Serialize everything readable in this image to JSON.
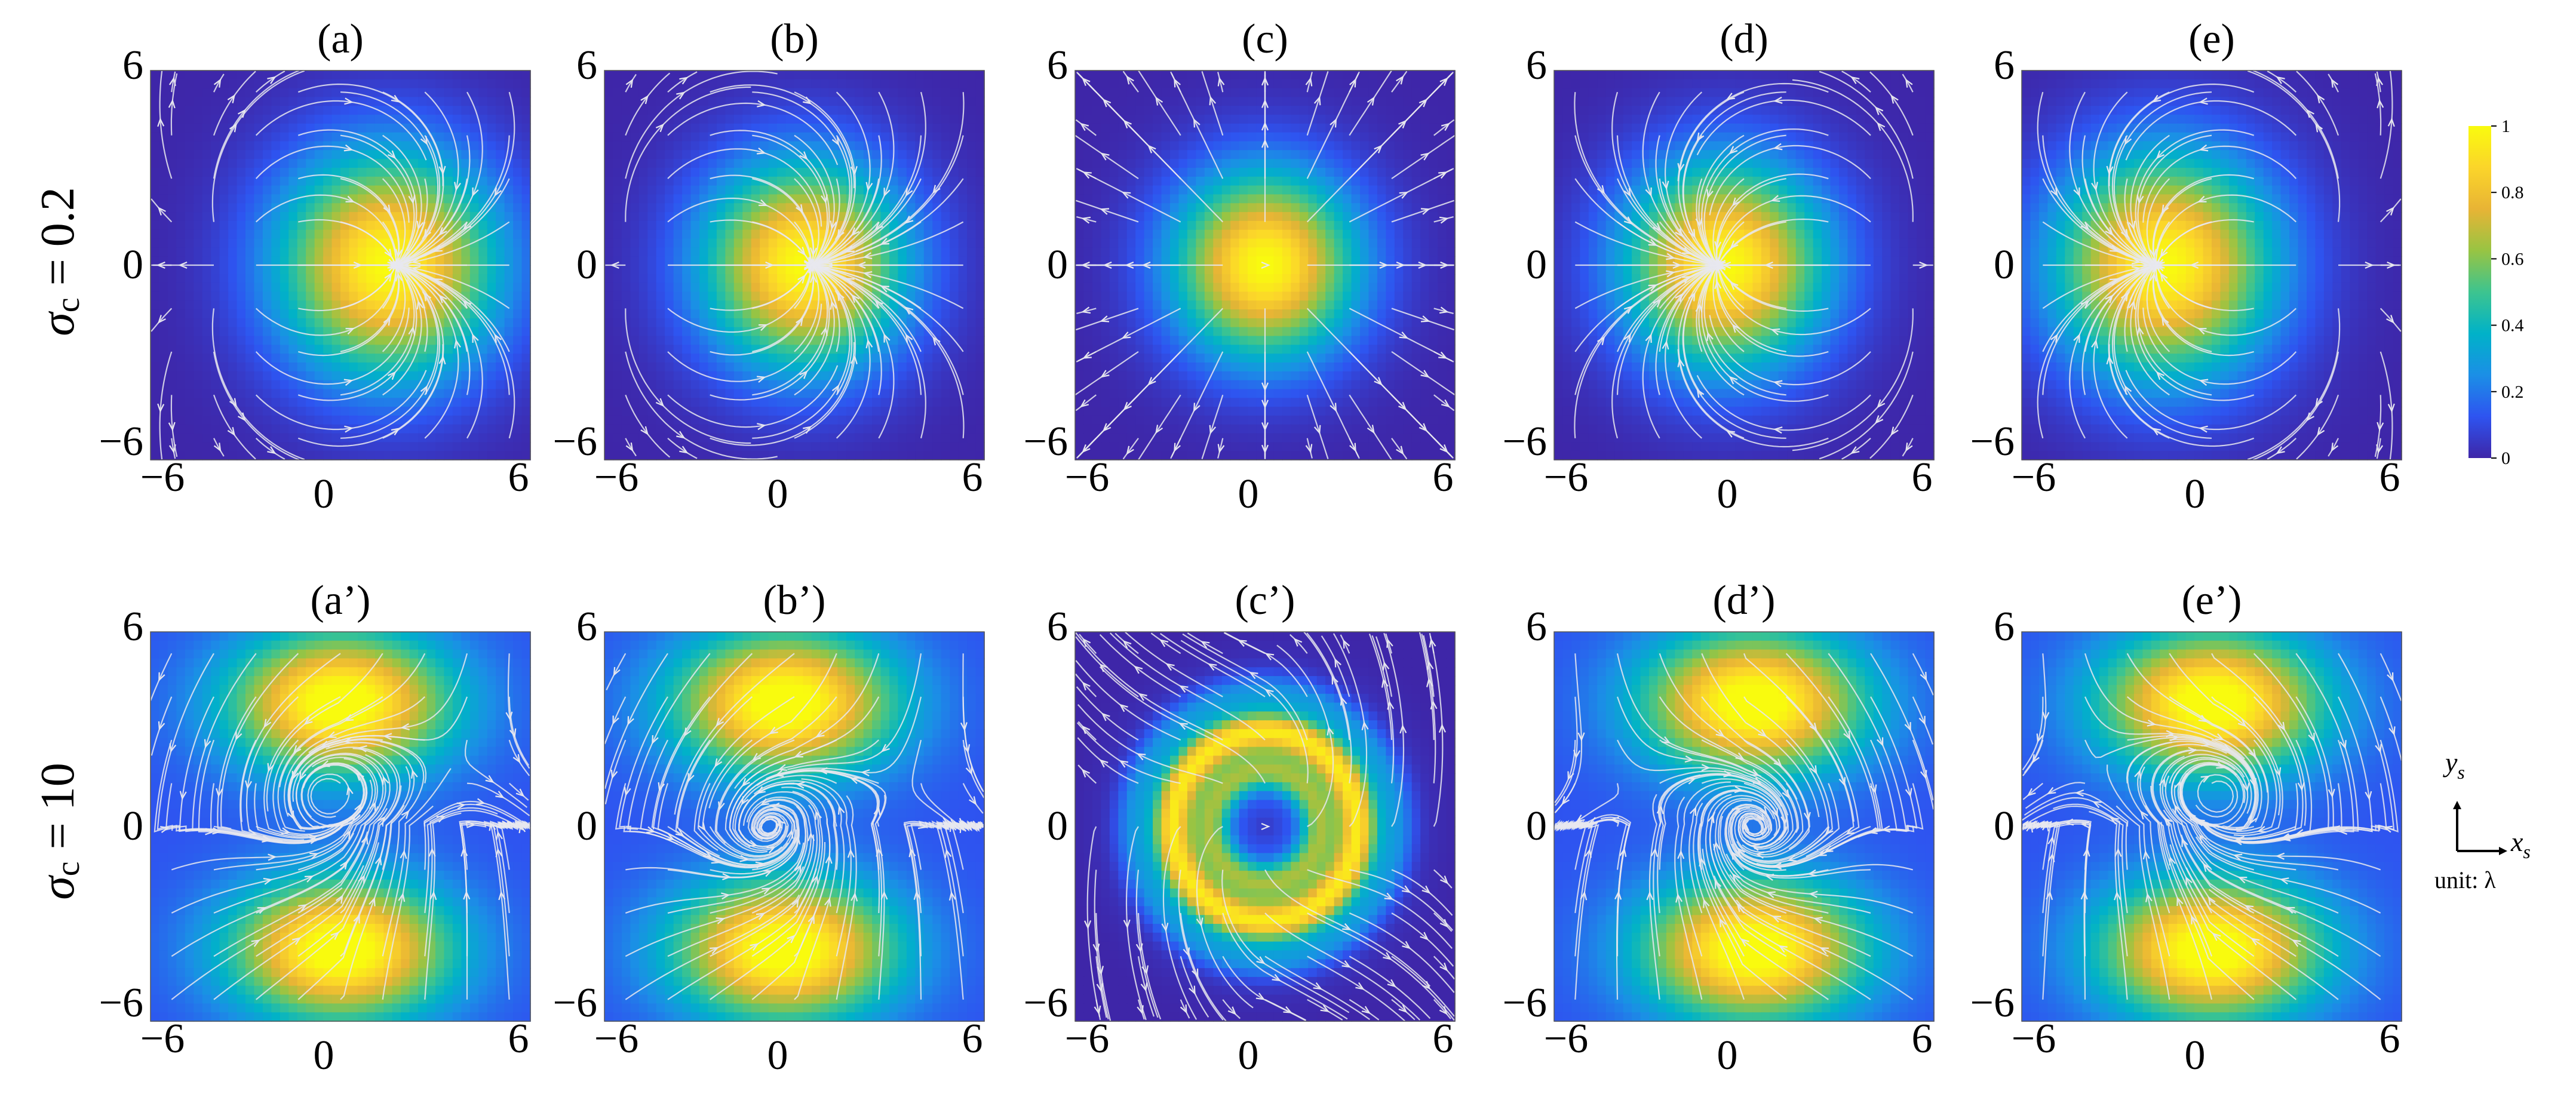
{
  "chart_data": {
    "type": "heatmap",
    "description_units": "intensity (normalized 0-1) with streamlines of transverse spin field",
    "rows": [
      {
        "label": "σc = 0.2",
        "label_symbol": "σ",
        "label_sub": "c",
        "label_value": " = 0.2",
        "sigma_c": 0.2
      },
      {
        "label": "σc = 10",
        "label_symbol": "σ",
        "label_sub": "c",
        "label_value": " = 10",
        "sigma_c": 10
      }
    ],
    "panels": [
      {
        "label": "(a)",
        "row": 0,
        "col": 0,
        "pattern": "gauss",
        "center": [
          1.5,
          0
        ],
        "sigma": 2.4,
        "source": [
          -3.5,
          0
        ],
        "vortex_sign": 0
      },
      {
        "label": "(b)",
        "row": 0,
        "col": 1,
        "pattern": "gauss",
        "center": [
          0.3,
          0
        ],
        "sigma": 2.2,
        "source": [
          -5.0,
          0
        ],
        "vortex_sign": 0
      },
      {
        "label": "(c)",
        "row": 0,
        "col": 2,
        "pattern": "gauss",
        "center": [
          0,
          0
        ],
        "sigma": 2.0,
        "source": [
          0,
          0
        ],
        "vortex_sign": 0
      },
      {
        "label": "(d)",
        "row": 0,
        "col": 3,
        "pattern": "gauss",
        "center": [
          -0.6,
          0
        ],
        "sigma": 2.2,
        "source": [
          5.0,
          0
        ],
        "vortex_sign": 0
      },
      {
        "label": "(e)",
        "row": 0,
        "col": 4,
        "pattern": "gauss",
        "center": [
          -1.5,
          0
        ],
        "sigma": 2.4,
        "source": [
          3.5,
          0
        ],
        "vortex_sign": 0
      },
      {
        "label": "(a’)",
        "row": 1,
        "col": 0,
        "pattern": "dipole",
        "center": [
          0,
          0
        ],
        "lobe_y": 3.8,
        "vortex": [
          -0.5,
          1.0
        ],
        "vortex_sign": 1
      },
      {
        "label": "(b’)",
        "row": 1,
        "col": 1,
        "pattern": "dipole",
        "center": [
          -0.3,
          0
        ],
        "lobe_y": 3.8,
        "vortex": [
          -0.8,
          0.0
        ],
        "vortex_sign": 1
      },
      {
        "label": "(c’)",
        "row": 1,
        "col": 2,
        "pattern": "ring",
        "center": [
          0,
          0
        ],
        "ring_r": 2.6,
        "vortex": [
          0,
          0
        ],
        "vortex_sign": 0
      },
      {
        "label": "(d’)",
        "row": 1,
        "col": 3,
        "pattern": "dipole",
        "center": [
          0.3,
          0
        ],
        "lobe_y": 3.8,
        "vortex": [
          0.3,
          0.0
        ],
        "vortex_sign": -1
      },
      {
        "label": "(e’)",
        "row": 1,
        "col": 4,
        "pattern": "dipole",
        "center": [
          0,
          0
        ],
        "lobe_y": 3.8,
        "vortex": [
          0.3,
          1.0
        ],
        "vortex_sign": -1
      }
    ],
    "x_ticks": [
      "−6",
      "0",
      "6"
    ],
    "y_ticks": [
      "6",
      "0",
      "−6"
    ],
    "xlim": [
      -6,
      6
    ],
    "ylim": [
      -6,
      6
    ],
    "colorbar": {
      "ticks": [
        "1",
        "0.8",
        "0.6",
        "0.4",
        "0.2",
        "0"
      ],
      "range": [
        0,
        1
      ],
      "colormap": "parula",
      "stops": [
        "#3e26a8",
        "#2e54f0",
        "#1b8fe6",
        "#00b2c8",
        "#3dc48f",
        "#98c443",
        "#e8b435",
        "#fbd52a",
        "#f9fb0e"
      ]
    },
    "axes_legend": {
      "y": "y",
      "y_sub": "s",
      "x": "x",
      "x_sub": "s",
      "unit": "unit: λ"
    },
    "streamline_color": "#e7e7ee"
  }
}
